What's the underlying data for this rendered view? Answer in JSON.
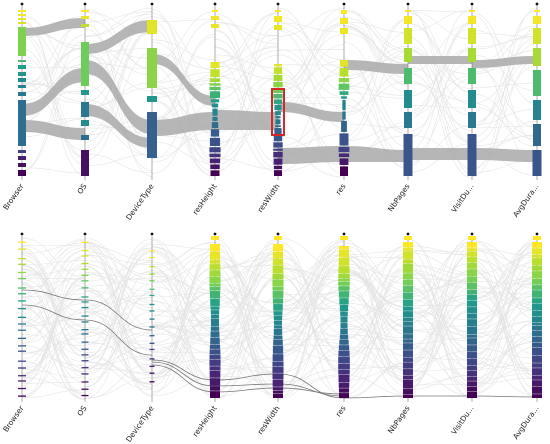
{
  "panels": [
    {
      "id": "top",
      "axes": [
        "Browser",
        "OS",
        "DeviceType",
        "resHeight",
        "resWidth",
        "res",
        "NbPages",
        "VisitDu...",
        "AvgDura..."
      ],
      "highlight_axis": "resWidth"
    },
    {
      "id": "bottom",
      "axes": [
        "Browser",
        "OS",
        "DeviceType",
        "resHeight",
        "resWidth",
        "res",
        "NbPages",
        "VisitDu...",
        "AvgDura..."
      ]
    }
  ],
  "colors": {
    "flow_light": "#e3e3e3",
    "flow_dark": "#a9a9a9",
    "highlight": "#d62728",
    "colormap": "viridis"
  }
}
